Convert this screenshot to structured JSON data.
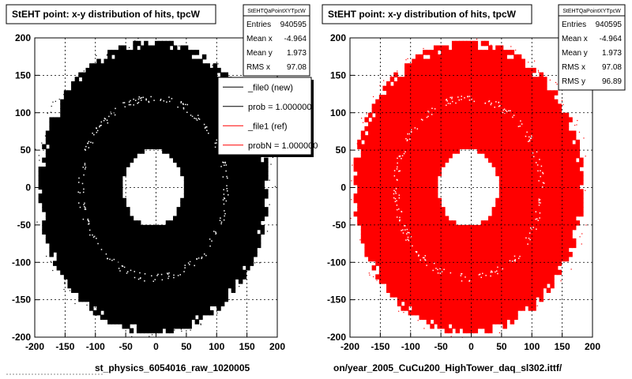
{
  "panels": [
    {
      "title": "StEHT point: x-y distribution of hits, tpcW",
      "footer": "st_physics_6054016_raw_1020005",
      "color": "#000000",
      "stats": {
        "name": "StEHTQaPointXYTpcW",
        "rows": [
          {
            "label": "Entries",
            "value": "940595"
          },
          {
            "label": "Mean x",
            "value": "-4.964"
          },
          {
            "label": "Mean y",
            "value": "1.973"
          },
          {
            "label": "RMS x",
            "value": "97.08"
          }
        ]
      },
      "legend": [
        {
          "label": "_file0 (new)",
          "color": "#000000"
        },
        {
          "label": "prob = 1.000000",
          "color": "#000000"
        },
        {
          "label": "_file1 (ref)",
          "color": "#ff0000"
        },
        {
          "label": "probN = 1.000000",
          "color": "#ff0000"
        }
      ]
    },
    {
      "title": "StEHT point: x-y distribution of hits, tpcW",
      "footer": "on/year_2005_CuCu200_HighTower_daq_sl302.ittf/",
      "color": "#ff0000",
      "stats": {
        "name": "StEHTQaPointXYTpcW",
        "rows": [
          {
            "label": "Entries",
            "value": "940595"
          },
          {
            "label": "Mean x",
            "value": "-4.964"
          },
          {
            "label": "Mean y",
            "value": "1.973"
          },
          {
            "label": "RMS x",
            "value": "97.08"
          },
          {
            "label": "RMS y",
            "value": "96.89"
          }
        ]
      }
    }
  ],
  "chart_data": [
    {
      "type": "heatmap",
      "title": "StEHT point: x-y distribution of hits, tpcW",
      "xlim": [
        -200,
        200
      ],
      "ylim": [
        -200,
        200
      ],
      "x_ticks": [
        -200,
        -150,
        -100,
        -50,
        0,
        50,
        100,
        150,
        200
      ],
      "y_ticks": [
        -200,
        -150,
        -100,
        -50,
        0,
        50,
        100,
        150,
        200
      ],
      "grid": true,
      "series": [
        {
          "name": "_file0 (new)",
          "color": "#000000",
          "inner_radius": 50,
          "outer_radius": 190
        }
      ]
    },
    {
      "type": "heatmap",
      "title": "StEHT point: x-y distribution of hits, tpcW",
      "xlim": [
        -200,
        200
      ],
      "ylim": [
        -200,
        200
      ],
      "x_ticks": [
        -200,
        -150,
        -100,
        -50,
        0,
        50,
        100,
        150,
        200
      ],
      "y_ticks": [
        -200,
        -150,
        -100,
        -50,
        0,
        50,
        100,
        150,
        200
      ],
      "grid": true,
      "series": [
        {
          "name": "_file1 (ref)",
          "color": "#ff0000",
          "inner_radius": 50,
          "outer_radius": 190
        }
      ]
    }
  ]
}
